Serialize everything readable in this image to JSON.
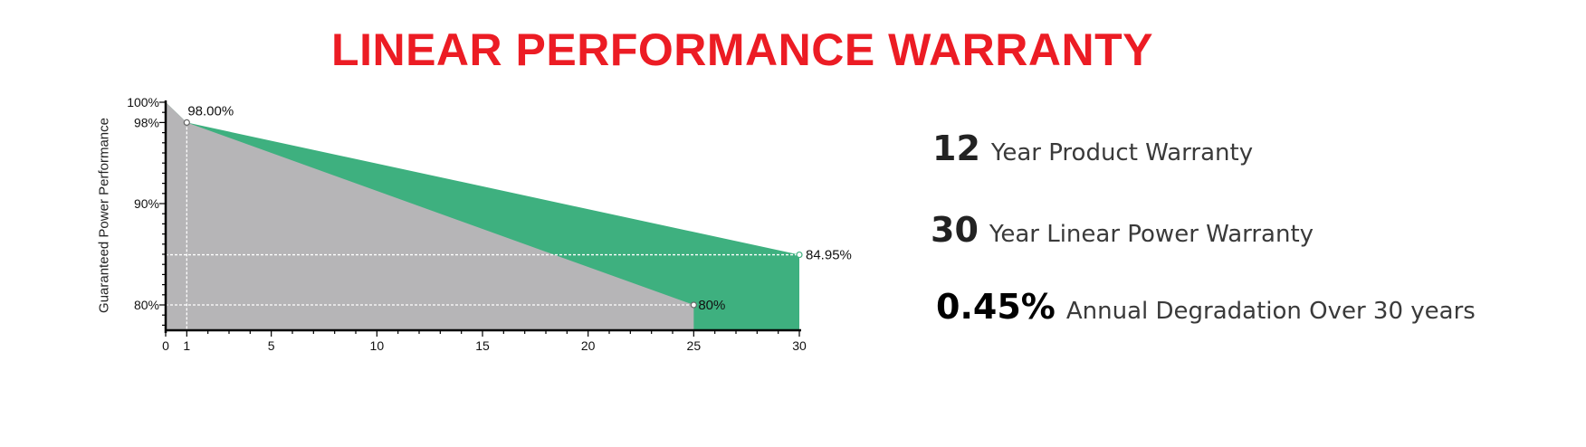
{
  "title": "LINEAR PERFORMANCE WARRANTY",
  "features": [
    {
      "value": "12",
      "label": "Year Product Warranty"
    },
    {
      "value": "30",
      "label": "Year Linear Power Warranty"
    },
    {
      "value": "0.45%",
      "label": "Annual Degradation Over 30 years"
    }
  ],
  "colors": {
    "title": "#ec1c24",
    "product_area": "#b6b5b7",
    "power_area": "#3eb07f",
    "axis": "#000000"
  },
  "chart_data": {
    "type": "area",
    "ylabel": "Guaranteed Power Performance",
    "xlim": [
      0,
      30
    ],
    "ylim": [
      77.5,
      100
    ],
    "x_ticks": [
      0,
      1,
      5,
      10,
      15,
      20,
      25,
      30
    ],
    "y_ticks": [
      {
        "value": 100,
        "label": "100%"
      },
      {
        "value": 98,
        "label": "98%"
      },
      {
        "value": 90,
        "label": "90%"
      },
      {
        "value": 80,
        "label": "80%"
      }
    ],
    "series": [
      {
        "x": [
          0,
          1,
          30
        ],
        "y": [
          100,
          98,
          84.95
        ]
      },
      {
        "x": [
          0,
          1,
          25
        ],
        "y": [
          100,
          98,
          80
        ]
      }
    ],
    "annotations": [
      {
        "x": 1,
        "y": 98,
        "text": "98.00%"
      },
      {
        "x": 30,
        "y": 84.95,
        "text": "84.95%"
      },
      {
        "x": 25,
        "y": 80,
        "text": "80%"
      }
    ],
    "grid": false
  }
}
